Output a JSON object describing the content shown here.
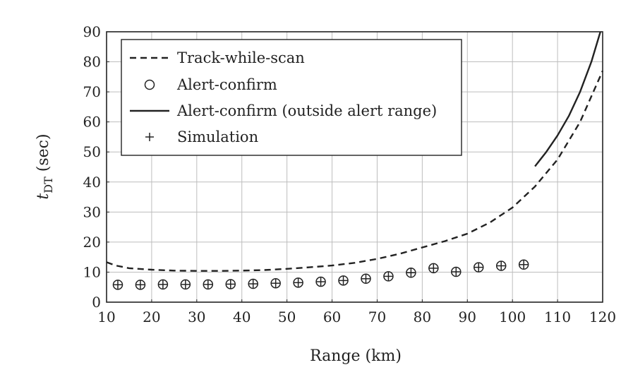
{
  "chart_data": {
    "type": "line",
    "xlabel": "Range (km)",
    "ylabel_main": "t",
    "ylabel_sub": "DT",
    "ylabel_rest": " (sec)",
    "xlim": [
      10,
      120
    ],
    "ylim": [
      0,
      90
    ],
    "x_ticks": [
      10,
      20,
      30,
      40,
      50,
      60,
      70,
      80,
      90,
      100,
      110,
      120
    ],
    "y_ticks": [
      0,
      10,
      20,
      30,
      40,
      50,
      60,
      70,
      80,
      90
    ],
    "grid": true,
    "legend_position": "top-left",
    "series": [
      {
        "name": "Track-while-scan",
        "style": "dashed",
        "x": [
          10,
          12,
          15,
          20,
          25,
          30,
          35,
          40,
          45,
          50,
          55,
          60,
          65,
          70,
          75,
          80,
          85,
          90,
          95,
          100,
          105,
          110,
          115,
          120
        ],
        "y": [
          13.3,
          12.2,
          11.3,
          10.8,
          10.5,
          10.4,
          10.4,
          10.5,
          10.7,
          11.1,
          11.6,
          12.2,
          13.1,
          14.4,
          16.1,
          18.2,
          20.3,
          22.8,
          26.5,
          31.5,
          38.5,
          47.5,
          60.0,
          77.0
        ]
      },
      {
        "name": "Alert-confirm",
        "style": "circle",
        "x": [
          12.5,
          17.5,
          22.5,
          27.5,
          32.5,
          37.5,
          42.5,
          47.5,
          52.5,
          57.5,
          62.5,
          67.5,
          72.5,
          77.5,
          82.5,
          87.5,
          92.5,
          97.5,
          102.5
        ],
        "y": [
          5.8,
          5.8,
          5.9,
          5.9,
          5.9,
          6.0,
          6.1,
          6.3,
          6.5,
          6.8,
          7.2,
          7.8,
          8.6,
          9.8,
          11.3,
          10.1,
          11.6,
          12.1,
          12.5
        ]
      },
      {
        "name": "Alert-confirm (outside alert range)",
        "style": "solid",
        "x": [
          105,
          107.5,
          110,
          112.5,
          115,
          117.5,
          119.5
        ],
        "y": [
          45.2,
          50.0,
          55.5,
          62.0,
          70.0,
          80.0,
          90.0
        ]
      },
      {
        "name": "Simulation",
        "style": "plus",
        "x": [
          12.5,
          17.5,
          22.5,
          27.5,
          32.5,
          37.5,
          42.5,
          47.5,
          52.5,
          57.5,
          62.5,
          67.5,
          72.5,
          77.5,
          82.5,
          87.5,
          92.5,
          97.5,
          102.5
        ],
        "y": [
          5.8,
          5.8,
          5.9,
          5.9,
          5.9,
          6.0,
          6.1,
          6.3,
          6.5,
          6.8,
          7.2,
          7.8,
          8.6,
          9.8,
          11.3,
          10.1,
          11.6,
          12.1,
          12.5
        ]
      }
    ]
  }
}
